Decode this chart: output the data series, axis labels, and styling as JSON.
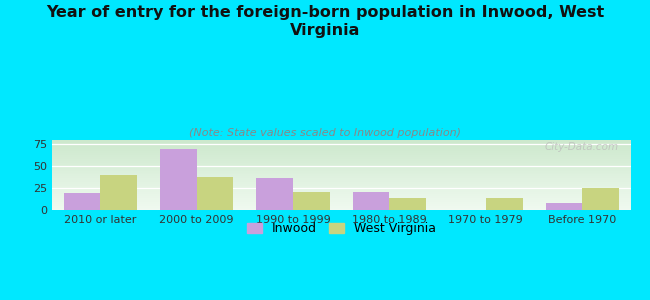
{
  "title": "Year of entry for the foreign-born population in Inwood, West\nVirginia",
  "subtitle": "(Note: State values scaled to Inwood population)",
  "categories": [
    "2010 or later",
    "2000 to 2009",
    "1990 to 1999",
    "1980 to 1989",
    "1970 to 1979",
    "Before 1970"
  ],
  "inwood_values": [
    19,
    69,
    36,
    20,
    0,
    8
  ],
  "wv_values": [
    40,
    38,
    20,
    14,
    14,
    25
  ],
  "inwood_color": "#c9a0dc",
  "wv_color": "#c8d480",
  "background_color": "#00e8ff",
  "grad_top": "#cce8cc",
  "grad_bottom": "#f0faf0",
  "ylim": [
    0,
    80
  ],
  "yticks": [
    0,
    25,
    50,
    75
  ],
  "bar_width": 0.38,
  "title_fontsize": 11.5,
  "subtitle_fontsize": 8,
  "tick_fontsize": 8,
  "legend_fontsize": 9,
  "watermark": "City-Data.com"
}
